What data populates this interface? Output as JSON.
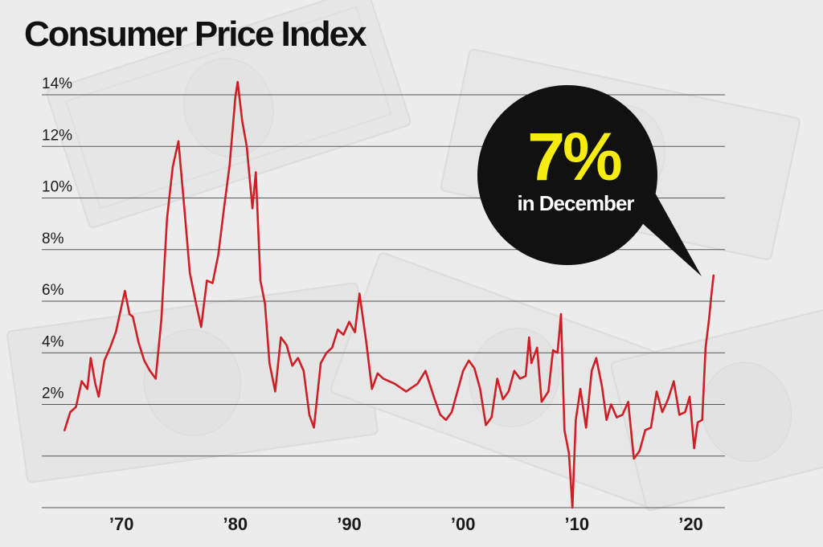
{
  "chart_data": {
    "type": "line",
    "title": "Consumer Price Index",
    "xlabel": "",
    "ylabel": "",
    "ylim": [
      -2,
      14
    ],
    "xlim": [
      1963,
      2023
    ],
    "y_ticks": [
      2,
      4,
      6,
      8,
      10,
      12,
      14
    ],
    "y_tick_labels": [
      "2%",
      "4%",
      "6%",
      "8%",
      "10%",
      "12%",
      "14%"
    ],
    "x_ticks": [
      1970,
      1980,
      1990,
      2000,
      2010,
      2020
    ],
    "x_tick_labels": [
      "’70",
      "’80",
      "’90",
      "’00",
      "’10",
      "’20"
    ],
    "grid": true,
    "colors": {
      "line": "#cc1f26",
      "callout_bg": "#111111",
      "callout_value": "#f7ec11",
      "callout_text": "#ffffff"
    },
    "annotation": {
      "value": "7%",
      "text": "in December"
    },
    "series": [
      {
        "values": [
          [
            1965.0,
            1.0
          ],
          [
            1965.5,
            1.7
          ],
          [
            1966.0,
            1.9
          ],
          [
            1966.5,
            2.9
          ],
          [
            1967.0,
            2.6
          ],
          [
            1967.3,
            3.8
          ],
          [
            1967.7,
            2.8
          ],
          [
            1968.0,
            2.3
          ],
          [
            1968.5,
            3.7
          ],
          [
            1969.0,
            4.2
          ],
          [
            1969.5,
            4.8
          ],
          [
            1970.0,
            5.8
          ],
          [
            1970.3,
            6.4
          ],
          [
            1970.7,
            5.5
          ],
          [
            1971.0,
            5.4
          ],
          [
            1971.5,
            4.4
          ],
          [
            1972.0,
            3.7
          ],
          [
            1972.5,
            3.3
          ],
          [
            1973.0,
            3.0
          ],
          [
            1973.5,
            5.3
          ],
          [
            1974.0,
            9.2
          ],
          [
            1974.5,
            11.2
          ],
          [
            1975.0,
            12.2
          ],
          [
            1975.5,
            9.7
          ],
          [
            1976.0,
            7.1
          ],
          [
            1976.5,
            6.0
          ],
          [
            1977.0,
            5.0
          ],
          [
            1977.5,
            6.8
          ],
          [
            1978.0,
            6.7
          ],
          [
            1978.5,
            7.8
          ],
          [
            1979.0,
            9.6
          ],
          [
            1979.5,
            11.3
          ],
          [
            1980.0,
            13.9
          ],
          [
            1980.2,
            14.5
          ],
          [
            1980.6,
            13.0
          ],
          [
            1981.0,
            12.0
          ],
          [
            1981.5,
            9.6
          ],
          [
            1981.8,
            11.0
          ],
          [
            1982.2,
            6.8
          ],
          [
            1982.6,
            5.9
          ],
          [
            1983.0,
            3.6
          ],
          [
            1983.5,
            2.5
          ],
          [
            1984.0,
            4.6
          ],
          [
            1984.5,
            4.3
          ],
          [
            1985.0,
            3.5
          ],
          [
            1985.5,
            3.8
          ],
          [
            1986.0,
            3.3
          ],
          [
            1986.5,
            1.6
          ],
          [
            1986.9,
            1.1
          ],
          [
            1987.5,
            3.6
          ],
          [
            1988.0,
            4.0
          ],
          [
            1988.5,
            4.2
          ],
          [
            1989.0,
            4.9
          ],
          [
            1989.5,
            4.7
          ],
          [
            1990.0,
            5.2
          ],
          [
            1990.5,
            4.8
          ],
          [
            1990.9,
            6.3
          ],
          [
            1991.5,
            4.4
          ],
          [
            1992.0,
            2.6
          ],
          [
            1992.5,
            3.2
          ],
          [
            1993.0,
            3.0
          ],
          [
            1994.0,
            2.8
          ],
          [
            1995.0,
            2.5
          ],
          [
            1996.0,
            2.8
          ],
          [
            1996.7,
            3.3
          ],
          [
            1997.5,
            2.2
          ],
          [
            1998.0,
            1.6
          ],
          [
            1998.5,
            1.4
          ],
          [
            1999.0,
            1.7
          ],
          [
            1999.5,
            2.5
          ],
          [
            2000.0,
            3.3
          ],
          [
            2000.5,
            3.7
          ],
          [
            2001.0,
            3.4
          ],
          [
            2001.5,
            2.6
          ],
          [
            2002.0,
            1.2
          ],
          [
            2002.5,
            1.5
          ],
          [
            2003.0,
            3.0
          ],
          [
            2003.5,
            2.2
          ],
          [
            2004.0,
            2.5
          ],
          [
            2004.5,
            3.3
          ],
          [
            2005.0,
            3.0
          ],
          [
            2005.5,
            3.1
          ],
          [
            2005.8,
            4.6
          ],
          [
            2006.0,
            3.6
          ],
          [
            2006.5,
            4.2
          ],
          [
            2006.9,
            2.1
          ],
          [
            2007.5,
            2.5
          ],
          [
            2007.9,
            4.1
          ],
          [
            2008.3,
            4.0
          ],
          [
            2008.6,
            5.5
          ],
          [
            2008.9,
            1.0
          ],
          [
            2009.3,
            0.1
          ],
          [
            2009.6,
            -2.0
          ],
          [
            2009.9,
            1.4
          ],
          [
            2010.3,
            2.6
          ],
          [
            2010.8,
            1.1
          ],
          [
            2011.3,
            3.3
          ],
          [
            2011.7,
            3.8
          ],
          [
            2012.2,
            2.7
          ],
          [
            2012.6,
            1.4
          ],
          [
            2013.0,
            2.0
          ],
          [
            2013.5,
            1.5
          ],
          [
            2014.0,
            1.6
          ],
          [
            2014.5,
            2.1
          ],
          [
            2015.0,
            -0.1
          ],
          [
            2015.5,
            0.2
          ],
          [
            2016.0,
            1.0
          ],
          [
            2016.5,
            1.1
          ],
          [
            2017.0,
            2.5
          ],
          [
            2017.5,
            1.7
          ],
          [
            2018.0,
            2.2
          ],
          [
            2018.5,
            2.9
          ],
          [
            2019.0,
            1.6
          ],
          [
            2019.5,
            1.7
          ],
          [
            2019.9,
            2.3
          ],
          [
            2020.3,
            0.3
          ],
          [
            2020.6,
            1.3
          ],
          [
            2021.0,
            1.4
          ],
          [
            2021.3,
            4.2
          ],
          [
            2021.6,
            5.3
          ],
          [
            2021.8,
            6.2
          ],
          [
            2022.0,
            7.0
          ]
        ]
      }
    ]
  }
}
